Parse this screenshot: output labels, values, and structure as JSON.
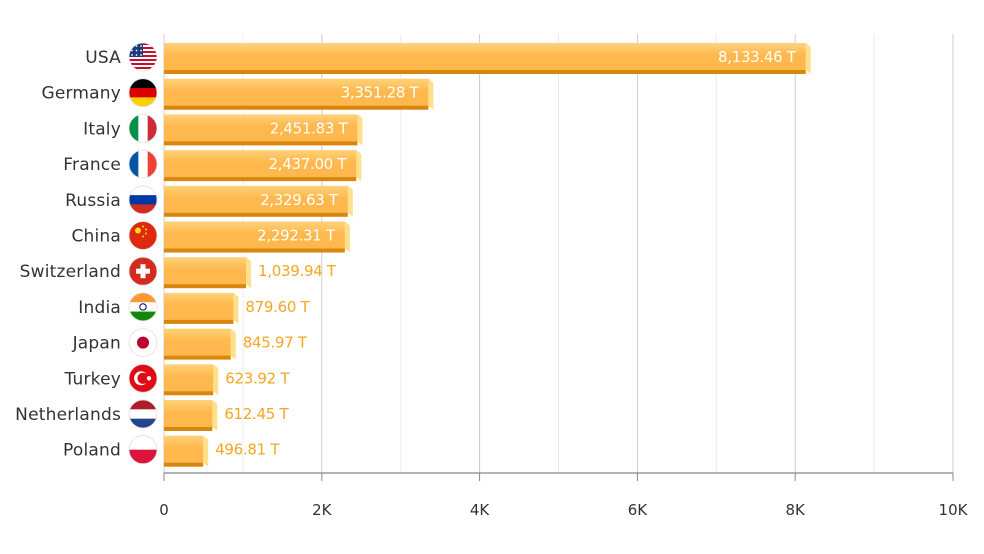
{
  "chart_data": {
    "type": "bar",
    "orientation": "horizontal",
    "categories": [
      "USA",
      "Germany",
      "Italy",
      "France",
      "Russia",
      "China",
      "Switzerland",
      "India",
      "Japan",
      "Turkey",
      "Netherlands",
      "Poland"
    ],
    "values": [
      8133.46,
      3351.28,
      2451.83,
      2437.0,
      2329.63,
      2292.31,
      1039.94,
      879.6,
      845.97,
      623.92,
      612.45,
      496.81
    ],
    "value_labels": [
      "8,133.46 T",
      "3,351.28 T",
      "2,451.83 T",
      "2,437.00 T",
      "2,329.63 T",
      "2,292.31 T",
      "1,039.94 T",
      "879.60 T",
      "845.97 T",
      "623.92 T",
      "612.45 T",
      "496.81 T"
    ],
    "flags": [
      "usa-flag-icon",
      "germany-flag-icon",
      "italy-flag-icon",
      "france-flag-icon",
      "russia-flag-icon",
      "china-flag-icon",
      "switzerland-flag-icon",
      "india-flag-icon",
      "japan-flag-icon",
      "turkey-flag-icon",
      "netherlands-flag-icon",
      "poland-flag-icon"
    ],
    "xlim": [
      0,
      10000
    ],
    "x_ticks": [
      0,
      2000,
      4000,
      6000,
      8000,
      10000
    ],
    "x_tick_labels": [
      "0",
      "2K",
      "4K",
      "6K",
      "8K",
      "10K"
    ],
    "title": "",
    "xlabel": "",
    "ylabel": "",
    "grid": true,
    "legend": "none",
    "colors": {
      "bar_fill": "#ffb84d",
      "bar_top": "#ffd27a",
      "bar_shadow": "#d9860f",
      "bar_end": "#ffe08a",
      "label_inside": "#ffffff",
      "label_outside": "#f5a623",
      "grid": "#dddddd",
      "axis": "#888888"
    }
  }
}
